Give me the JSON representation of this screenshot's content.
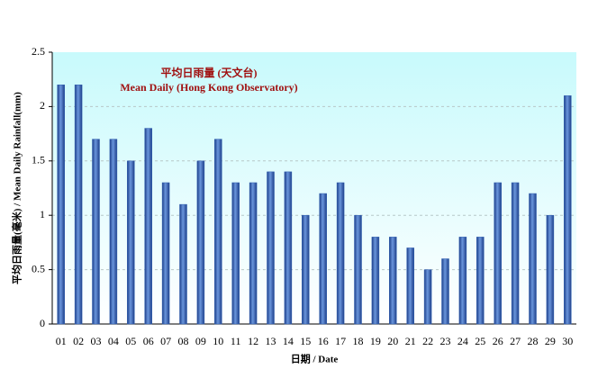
{
  "chart_data": {
    "type": "bar",
    "title": "平均日雨量 (天文台)",
    "subtitle": "Mean Daily (Hong Kong Observatory)",
    "x_label": "日期 / Date",
    "y_label": "平均日雨量(毫米) / Mean Daily Rainfall(mm)",
    "categories": [
      "01",
      "02",
      "03",
      "04",
      "05",
      "06",
      "07",
      "08",
      "09",
      "10",
      "11",
      "12",
      "13",
      "14",
      "15",
      "16",
      "17",
      "18",
      "19",
      "20",
      "21",
      "22",
      "23",
      "24",
      "25",
      "26",
      "27",
      "28",
      "29",
      "30"
    ],
    "values": [
      2.2,
      2.2,
      1.7,
      1.7,
      1.5,
      1.8,
      1.3,
      1.1,
      1.5,
      1.7,
      1.3,
      1.3,
      1.4,
      1.4,
      1.0,
      1.2,
      1.3,
      1.0,
      0.8,
      0.8,
      0.7,
      0.5,
      0.6,
      0.8,
      0.8,
      1.3,
      1.3,
      1.2,
      1.0,
      2.1
    ],
    "color": "#2f5fb0",
    "ylim": [
      0,
      2.5
    ],
    "yticks": [
      0,
      0.5,
      1,
      1.5,
      2,
      2.5
    ],
    "grid": true
  }
}
